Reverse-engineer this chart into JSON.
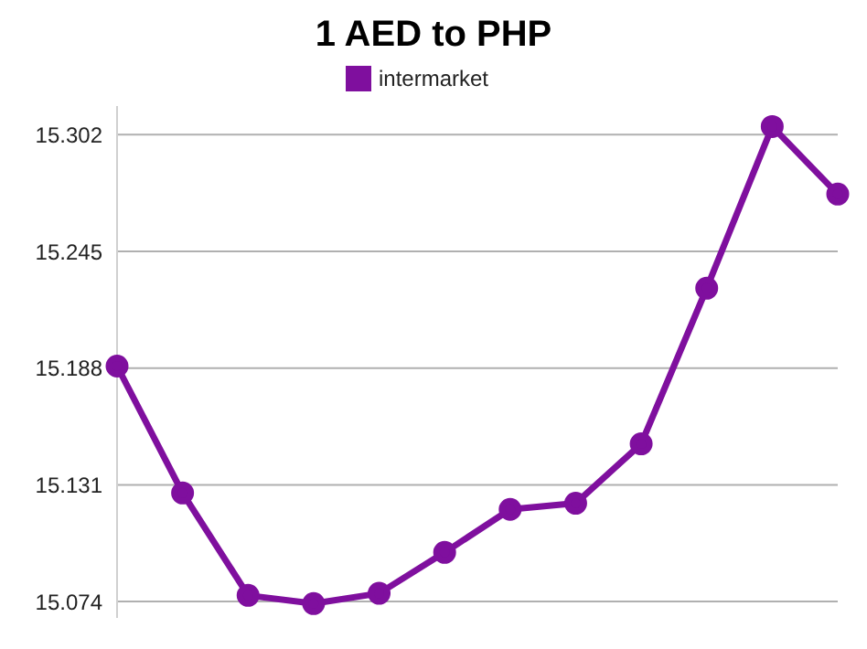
{
  "chart_data": {
    "type": "line",
    "title": "1 AED to PHP",
    "categories": [
      null,
      null,
      null,
      null,
      null,
      null,
      null,
      null,
      null,
      null,
      null,
      null
    ],
    "series": [
      {
        "name": "intermarket",
        "color": "#7f0f9e",
        "values": [
          15.189,
          15.127,
          15.077,
          15.073,
          15.078,
          15.098,
          15.119,
          15.122,
          15.151,
          15.227,
          15.306,
          15.273
        ]
      }
    ],
    "ylim": [
      15.066,
      15.316
    ],
    "yticks": [
      15.074,
      15.131,
      15.188,
      15.245,
      15.302
    ],
    "grid": "y",
    "legend": "top",
    "marker": "circle",
    "line_style": "solid",
    "tick_labels": "y"
  }
}
